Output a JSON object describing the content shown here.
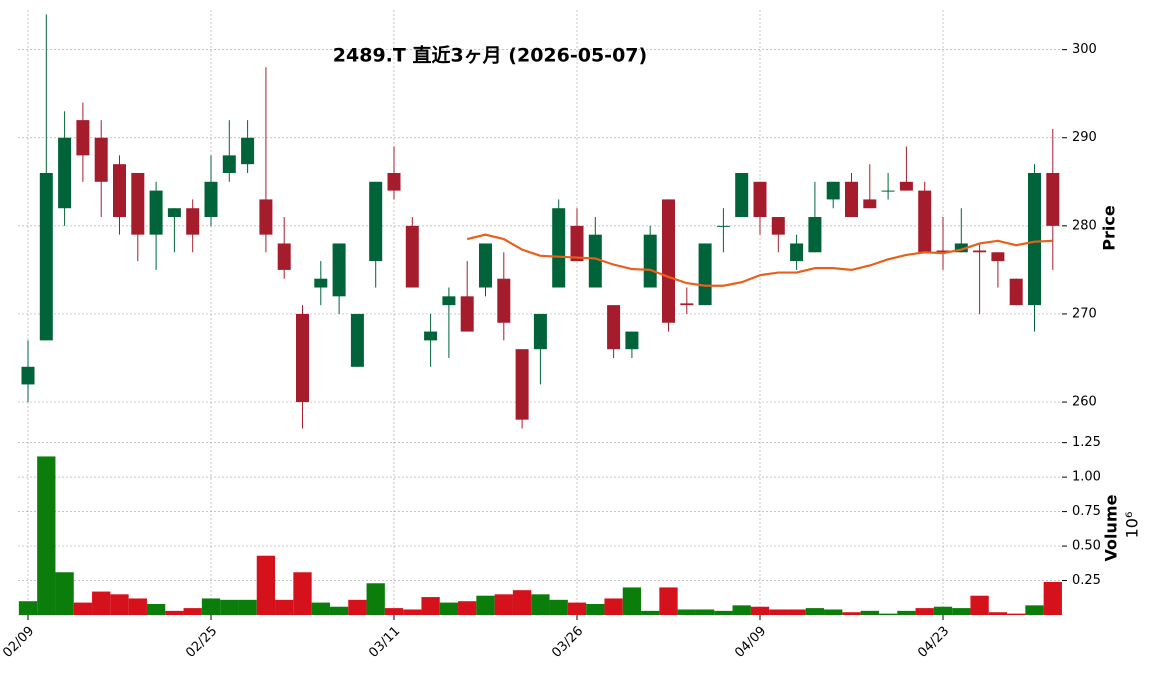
{
  "chart_data": {
    "type": "candlestick",
    "title": "2489.T  直近3ヶ月 (2026-05-07)",
    "ylabel": "Price",
    "volume_label": "Volume",
    "volume_scale": "10⁶",
    "categories": [
      "02/09",
      null,
      null,
      null,
      null,
      null,
      null,
      null,
      null,
      null,
      "02/25",
      null,
      null,
      null,
      null,
      null,
      null,
      null,
      null,
      null,
      "03/11",
      null,
      null,
      null,
      null,
      null,
      null,
      null,
      null,
      null,
      "03/26",
      null,
      null,
      null,
      null,
      null,
      null,
      null,
      null,
      null,
      "04/09",
      null,
      null,
      null,
      null,
      null,
      null,
      null,
      null,
      null,
      "04/23",
      null,
      null,
      null,
      null,
      null,
      null
    ],
    "open": [
      262,
      267,
      282,
      292,
      290,
      287,
      286,
      279,
      281,
      282,
      281,
      286,
      287,
      283,
      278,
      270,
      273,
      272,
      264,
      276,
      286,
      280,
      267,
      271,
      272,
      273,
      274,
      266,
      266,
      273,
      280,
      273,
      271,
      266,
      273,
      283,
      271.2,
      271,
      280,
      281,
      285,
      281,
      276,
      277,
      283,
      285,
      283,
      284,
      285,
      284,
      277.2,
      277,
      277.2,
      277,
      274,
      271,
      286
    ],
    "high": [
      267,
      304,
      293,
      294,
      292,
      288,
      286,
      285,
      282,
      283,
      288,
      292,
      292,
      298,
      281,
      271,
      276,
      278,
      270,
      285,
      289,
      281,
      270,
      273,
      276,
      278,
      277,
      266,
      270,
      283,
      282,
      281,
      271,
      268,
      280,
      283,
      273,
      278,
      282,
      286,
      285,
      281,
      279,
      285,
      285,
      286,
      287,
      286,
      289,
      285,
      281,
      282,
      278,
      277,
      274,
      287,
      291
    ],
    "low": [
      260,
      267,
      280,
      285,
      281,
      279,
      276,
      275,
      277,
      277,
      280,
      285,
      286,
      277,
      274,
      257,
      271,
      270,
      264,
      273,
      283,
      273,
      264,
      265,
      268,
      272,
      267,
      257,
      262,
      273,
      276,
      273,
      265,
      265,
      273,
      268,
      270,
      271,
      277,
      281,
      279,
      277,
      275,
      277,
      282,
      281,
      282,
      283,
      284,
      277,
      275,
      277,
      270,
      273,
      271,
      268,
      275
    ],
    "close": [
      264,
      286,
      290,
      288,
      285,
      281,
      279,
      284,
      282,
      279,
      285,
      288,
      290,
      279,
      275,
      260,
      274,
      278,
      270,
      285,
      284,
      273,
      268,
      272,
      268,
      278,
      269,
      258,
      270,
      282,
      276,
      279,
      266,
      268,
      279,
      269,
      271,
      278,
      280,
      286,
      281,
      279,
      278,
      281,
      285,
      281,
      282,
      284,
      284,
      277,
      277,
      278,
      277,
      276,
      271,
      286,
      280
    ],
    "ma": [
      null,
      null,
      null,
      null,
      null,
      null,
      null,
      null,
      null,
      null,
      null,
      null,
      null,
      null,
      null,
      null,
      null,
      null,
      null,
      null,
      null,
      null,
      null,
      null,
      278.5,
      279,
      278.5,
      277.3,
      276.6,
      276.5,
      276.4,
      276.3,
      275.6,
      275.1,
      275,
      274.2,
      273.5,
      273.2,
      273.2,
      273.6,
      274.4,
      274.7,
      274.7,
      275.2,
      275.2,
      275,
      275.5,
      276.2,
      276.7,
      277,
      276.9,
      277.3,
      278,
      278.3,
      277.8,
      278.2,
      278.3
    ],
    "volume": [
      0.1,
      1.15,
      0.31,
      0.09,
      0.17,
      0.15,
      0.12,
      0.08,
      0.03,
      0.05,
      0.12,
      0.11,
      0.11,
      0.43,
      0.11,
      0.31,
      0.09,
      0.06,
      0.11,
      0.23,
      0.05,
      0.04,
      0.13,
      0.09,
      0.1,
      0.14,
      0.15,
      0.18,
      0.15,
      0.11,
      0.09,
      0.08,
      0.12,
      0.2,
      0.03,
      0.2,
      0.04,
      0.04,
      0.03,
      0.07,
      0.06,
      0.04,
      0.04,
      0.05,
      0.04,
      0.02,
      0.03,
      0.01,
      0.03,
      0.05,
      0.06,
      0.05,
      0.14,
      0.02,
      0.01,
      0.07,
      0.24
    ],
    "ylim": [
      256.6,
      304.5
    ],
    "yticks": [
      260,
      270,
      280,
      290,
      300
    ],
    "volume_ylim": [
      0,
      1.32
    ],
    "volume_yticks": [
      0.25,
      {
        "value": 0.5,
        "label": "0.50"
      },
      0.75,
      {
        "value": 1,
        "label": "1.00"
      },
      1.25
    ],
    "up_color": "#00633a",
    "down_color": "#a51d2d",
    "volume_up_color": "#0a7d0a",
    "volume_down_color": "#d5111c",
    "ma_color": "#e8601c",
    "grid": true
  }
}
